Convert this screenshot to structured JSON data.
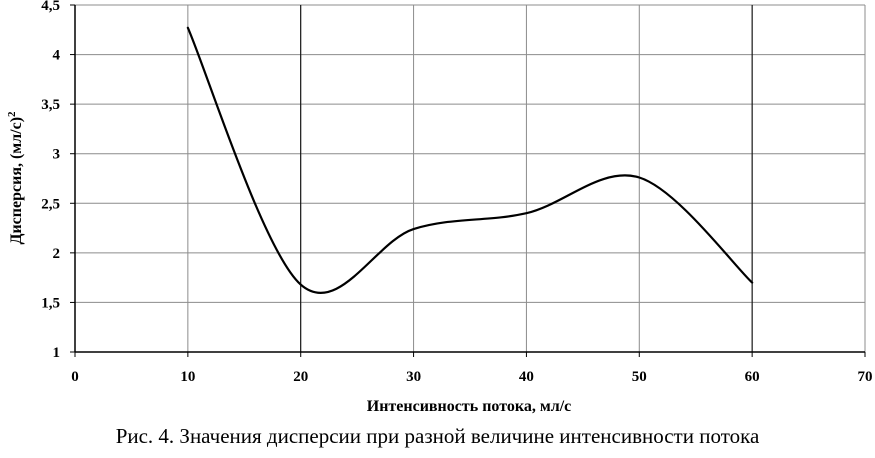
{
  "caption": "Рис. 4. Значения дисперсии при разной величине интенсивности потока",
  "chart_data": {
    "type": "line",
    "xlabel": "Интенсивность потока, мл/с",
    "ylabel_main": "Дисперсия, (мл/с)",
    "ylabel_sup": "2",
    "xlim": [
      0,
      70
    ],
    "ylim": [
      1,
      4.5
    ],
    "x_ticks": [
      0,
      10,
      20,
      30,
      40,
      50,
      60,
      70
    ],
    "y_ticks": [
      1,
      1.5,
      2,
      2.5,
      3,
      3.5,
      4,
      4.5
    ],
    "x_tick_labels": [
      "0",
      "10",
      "20",
      "30",
      "40",
      "50",
      "60",
      "70"
    ],
    "y_tick_labels": [
      "1",
      "1,5",
      "2",
      "2,5",
      "3",
      "3,5",
      "4",
      "4,5"
    ],
    "grid": true,
    "smooth": true,
    "series": [
      {
        "x": [
          10,
          20,
          30,
          40,
          50,
          60
        ],
        "y": [
          4.27,
          1.68,
          2.24,
          2.4,
          2.76,
          1.7
        ],
        "color": "#000000"
      }
    ]
  }
}
